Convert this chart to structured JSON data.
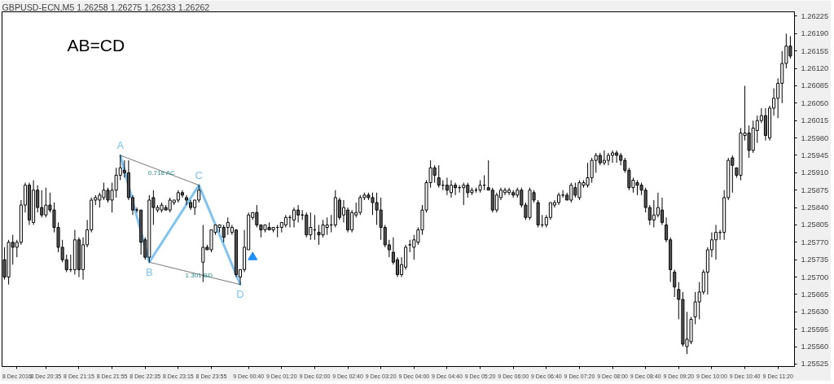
{
  "chart_data": {
    "type": "candlestick",
    "title": "GBPUSD-ECN,M5  1.26258 1.26275 1.26233 1.26262",
    "x": [
      "2016-12-08T19:45",
      "2016-12-08T19:50",
      "2016-12-08T19:55",
      "2016-12-08T20:00",
      "2016-12-08T20:05",
      "2016-12-08T20:10",
      "2016-12-08T20:15",
      "2016-12-08T20:20",
      "2016-12-08T20:25",
      "2016-12-08T20:30",
      "2016-12-08T20:35",
      "2016-12-08T20:40",
      "2016-12-08T20:45",
      "2016-12-08T20:50",
      "2016-12-08T20:55",
      "2016-12-08T21:00",
      "2016-12-08T21:05",
      "2016-12-08T21:10",
      "2016-12-08T21:15",
      "2016-12-08T21:20",
      "2016-12-08T21:25",
      "2016-12-08T21:30",
      "2016-12-08T21:35",
      "2016-12-08T21:40",
      "2016-12-08T21:45",
      "2016-12-08T21:50",
      "2016-12-08T21:55",
      "2016-12-08T22:00",
      "2016-12-08T22:05",
      "2016-12-08T22:10",
      "2016-12-08T22:15",
      "2016-12-08T22:20",
      "2016-12-08T22:25",
      "2016-12-08T22:30",
      "2016-12-08T22:35",
      "2016-12-08T22:40",
      "2016-12-08T22:45",
      "2016-12-08T22:50",
      "2016-12-08T22:55",
      "2016-12-08T23:00",
      "2016-12-08T23:05",
      "2016-12-08T23:10",
      "2016-12-08T23:15",
      "2016-12-08T23:20",
      "2016-12-08T23:25",
      "2016-12-08T23:30",
      "2016-12-08T23:35",
      "2016-12-08T23:40",
      "2016-12-08T23:45",
      "2016-12-08T23:50",
      "2016-12-08T23:55",
      "2016-12-09T00:00",
      "2016-12-09T00:05",
      "2016-12-09T00:10",
      "2016-12-09T00:15",
      "2016-12-09T00:20",
      "2016-12-09T00:25",
      "2016-12-09T00:30",
      "2016-12-09T00:35",
      "2016-12-09T00:40",
      "2016-12-09T00:45",
      "2016-12-09T00:50",
      "2016-12-09T00:55",
      "2016-12-09T01:00",
      "2016-12-09T01:05",
      "2016-12-09T01:10",
      "2016-12-09T01:15",
      "2016-12-09T01:20",
      "2016-12-09T01:25",
      "2016-12-09T01:30",
      "2016-12-09T01:35",
      "2016-12-09T01:40",
      "2016-12-09T01:45",
      "2016-12-09T01:50",
      "2016-12-09T01:55",
      "2016-12-09T02:00",
      "2016-12-09T02:05",
      "2016-12-09T02:10",
      "2016-12-09T02:15",
      "2016-12-09T02:20",
      "2016-12-09T02:25",
      "2016-12-09T02:30",
      "2016-12-09T02:35",
      "2016-12-09T02:40",
      "2016-12-09T02:45",
      "2016-12-09T02:50",
      "2016-12-09T02:55",
      "2016-12-09T03:00",
      "2016-12-09T03:05",
      "2016-12-09T03:10",
      "2016-12-09T03:15",
      "2016-12-09T03:20",
      "2016-12-09T03:25",
      "2016-12-09T03:30",
      "2016-12-09T03:35",
      "2016-12-09T03:40",
      "2016-12-09T03:45",
      "2016-12-09T03:50",
      "2016-12-09T03:55",
      "2016-12-09T04:00",
      "2016-12-09T04:05",
      "2016-12-09T04:10",
      "2016-12-09T04:15",
      "2016-12-09T04:20",
      "2016-12-09T04:25",
      "2016-12-09T04:30",
      "2016-12-09T04:35",
      "2016-12-09T04:40",
      "2016-12-09T04:45",
      "2016-12-09T04:50",
      "2016-12-09T04:55",
      "2016-12-09T05:00",
      "2016-12-09T05:05",
      "2016-12-09T05:10",
      "2016-12-09T05:15",
      "2016-12-09T05:20",
      "2016-12-09T05:25",
      "2016-12-09T05:30",
      "2016-12-09T05:35",
      "2016-12-09T05:40",
      "2016-12-09T05:45",
      "2016-12-09T05:50",
      "2016-12-09T05:55",
      "2016-12-09T06:00",
      "2016-12-09T06:05",
      "2016-12-09T06:10",
      "2016-12-09T06:15",
      "2016-12-09T06:20",
      "2016-12-09T06:25",
      "2016-12-09T06:30",
      "2016-12-09T06:35",
      "2016-12-09T06:40",
      "2016-12-09T06:45",
      "2016-12-09T06:50",
      "2016-12-09T06:55",
      "2016-12-09T07:00",
      "2016-12-09T07:05",
      "2016-12-09T07:10",
      "2016-12-09T07:15",
      "2016-12-09T07:20",
      "2016-12-09T07:25",
      "2016-12-09T07:30",
      "2016-12-09T07:35",
      "2016-12-09T07:40",
      "2016-12-09T07:45",
      "2016-12-09T07:50",
      "2016-12-09T07:55",
      "2016-12-09T08:00",
      "2016-12-09T08:05",
      "2016-12-09T08:10",
      "2016-12-09T08:15",
      "2016-12-09T08:20",
      "2016-12-09T08:25",
      "2016-12-09T08:30",
      "2016-12-09T08:35",
      "2016-12-09T08:40",
      "2016-12-09T08:45",
      "2016-12-09T08:50",
      "2016-12-09T08:55",
      "2016-12-09T09:00",
      "2016-12-09T09:05",
      "2016-12-09T09:10",
      "2016-12-09T09:15",
      "2016-12-09T09:20",
      "2016-12-09T09:25",
      "2016-12-09T09:30",
      "2016-12-09T09:35",
      "2016-12-09T09:40",
      "2016-12-09T09:45",
      "2016-12-09T09:50",
      "2016-12-09T09:55",
      "2016-12-09T10:00",
      "2016-12-09T10:05",
      "2016-12-09T10:10",
      "2016-12-09T10:15",
      "2016-12-09T10:20",
      "2016-12-09T10:25",
      "2016-12-09T10:30",
      "2016-12-09T10:35",
      "2016-12-09T10:40",
      "2016-12-09T10:45",
      "2016-12-09T10:50",
      "2016-12-09T10:55",
      "2016-12-09T11:00",
      "2016-12-09T11:05",
      "2016-12-09T11:10",
      "2016-12-09T11:15",
      "2016-12-09T11:20",
      "2016-12-09T11:25",
      "2016-12-09T11:30",
      "2016-12-09T11:35"
    ],
    "ohlc": [
      [
        1.25735,
        1.2576,
        1.25695,
        1.257
      ],
      [
        1.257,
        1.25775,
        1.25685,
        1.2577
      ],
      [
        1.2577,
        1.25785,
        1.25725,
        1.2576
      ],
      [
        1.2576,
        1.25775,
        1.2574,
        1.2577
      ],
      [
        1.2577,
        1.25855,
        1.25765,
        1.25845
      ],
      [
        1.25845,
        1.2589,
        1.2583,
        1.25885
      ],
      [
        1.25885,
        1.2589,
        1.25805,
        1.25815
      ],
      [
        1.2581,
        1.25895,
        1.25805,
        1.25875
      ],
      [
        1.25875,
        1.25885,
        1.2583,
        1.2584
      ],
      [
        1.2584,
        1.25875,
        1.2582,
        1.25825
      ],
      [
        1.25825,
        1.2588,
        1.2582,
        1.25845
      ],
      [
        1.25845,
        1.2587,
        1.2583,
        1.25835
      ],
      [
        1.25835,
        1.2585,
        1.2579,
        1.258
      ],
      [
        1.258,
        1.2581,
        1.2575,
        1.2576
      ],
      [
        1.2576,
        1.25775,
        1.2573,
        1.25735
      ],
      [
        1.25735,
        1.25745,
        1.2571,
        1.25715
      ],
      [
        1.25715,
        1.25745,
        1.2571,
        1.25715
      ],
      [
        1.25715,
        1.25795,
        1.25705,
        1.25775
      ],
      [
        1.25775,
        1.2578,
        1.257,
        1.25715
      ],
      [
        1.25715,
        1.2578,
        1.25695,
        1.25765
      ],
      [
        1.25765,
        1.25815,
        1.2576,
        1.25795
      ],
      [
        1.25795,
        1.2586,
        1.2579,
        1.25855
      ],
      [
        1.25855,
        1.25865,
        1.25845,
        1.2586
      ],
      [
        1.25855,
        1.2587,
        1.2584,
        1.25865
      ],
      [
        1.2586,
        1.2589,
        1.25855,
        1.25875
      ],
      [
        1.25875,
        1.2588,
        1.2585,
        1.25855
      ],
      [
        1.25855,
        1.2589,
        1.2583,
        1.25875
      ],
      [
        1.25875,
        1.2592,
        1.2586,
        1.25905
      ],
      [
        1.25905,
        1.25945,
        1.25895,
        1.2592
      ],
      [
        1.25915,
        1.25935,
        1.259,
        1.2591
      ],
      [
        1.2591,
        1.25935,
        1.25855,
        1.2586
      ],
      [
        1.2586,
        1.25865,
        1.25825,
        1.25835
      ],
      [
        1.25835,
        1.2584,
        1.2583,
        1.25835
      ],
      [
        1.25835,
        1.25835,
        1.25745,
        1.2577
      ],
      [
        1.25775,
        1.2578,
        1.25735,
        1.2574
      ],
      [
        1.2574,
        1.25865,
        1.2573,
        1.25855
      ],
      [
        1.2586,
        1.25875,
        1.25805,
        1.2584
      ],
      [
        1.25835,
        1.25845,
        1.2583,
        1.2584
      ],
      [
        1.25835,
        1.2585,
        1.2583,
        1.25845
      ],
      [
        1.2584,
        1.25845,
        1.25835,
        1.25835
      ],
      [
        1.25835,
        1.2586,
        1.2583,
        1.25855
      ],
      [
        1.2585,
        1.25855,
        1.25845,
        1.25855
      ],
      [
        1.25855,
        1.25875,
        1.2585,
        1.2587
      ],
      [
        1.2587,
        1.25875,
        1.2586,
        1.25865
      ],
      [
        1.2586,
        1.25865,
        1.25845,
        1.25855
      ],
      [
        1.2585,
        1.25855,
        1.25835,
        1.2584
      ],
      [
        1.2584,
        1.25855,
        1.25825,
        1.25855
      ],
      [
        1.25855,
        1.25885,
        1.2585,
        1.25875
      ],
      [
        1.2573,
        1.25805,
        1.2569,
        1.2576
      ],
      [
        1.2576,
        1.25765,
        1.25755,
        1.25755
      ],
      [
        1.25755,
        1.25795,
        1.2575,
        1.25795
      ],
      [
        1.2579,
        1.25805,
        1.25785,
        1.25805
      ],
      [
        1.258,
        1.25805,
        1.2579,
        1.25805
      ],
      [
        1.258,
        1.25805,
        1.2577,
        1.2578
      ],
      [
        1.258,
        1.2582,
        1.25785,
        1.2581
      ],
      [
        1.2579,
        1.25805,
        1.25785,
        1.258
      ],
      [
        1.25795,
        1.25795,
        1.257,
        1.25705
      ],
      [
        1.257,
        1.25715,
        1.25685,
        1.25715
      ],
      [
        1.25715,
        1.25795,
        1.2571,
        1.2576
      ],
      [
        1.25755,
        1.2583,
        1.25755,
        1.25825
      ],
      [
        1.2582,
        1.2583,
        1.25815,
        1.2583
      ],
      [
        1.2583,
        1.25845,
        1.258,
        1.25805
      ],
      [
        1.25805,
        1.25805,
        1.2578,
        1.25795
      ],
      [
        1.25795,
        1.25805,
        1.2579,
        1.25805
      ],
      [
        1.258,
        1.2581,
        1.25795,
        1.25795
      ],
      [
        1.25795,
        1.258,
        1.2579,
        1.258
      ],
      [
        1.258,
        1.25805,
        1.2578,
        1.258
      ],
      [
        1.258,
        1.2581,
        1.2579,
        1.2581
      ],
      [
        1.25805,
        1.25825,
        1.258,
        1.2582
      ],
      [
        1.2582,
        1.25825,
        1.258,
        1.2582
      ],
      [
        1.25815,
        1.2584,
        1.258,
        1.25835
      ],
      [
        1.25835,
        1.25845,
        1.2581,
        1.25825
      ],
      [
        1.25825,
        1.25835,
        1.25815,
        1.25825
      ],
      [
        1.25825,
        1.2583,
        1.2578,
        1.25785
      ],
      [
        1.25785,
        1.2583,
        1.25775,
        1.258
      ],
      [
        1.25795,
        1.25825,
        1.25775,
        1.25795
      ],
      [
        1.2579,
        1.25805,
        1.25765,
        1.25785
      ],
      [
        1.25785,
        1.25815,
        1.2578,
        1.25805
      ],
      [
        1.258,
        1.2582,
        1.25785,
        1.25805
      ],
      [
        1.25805,
        1.25825,
        1.2579,
        1.25805
      ],
      [
        1.25805,
        1.25875,
        1.258,
        1.2586
      ],
      [
        1.25855,
        1.2586,
        1.25815,
        1.2582
      ],
      [
        1.25825,
        1.25855,
        1.2581,
        1.2584
      ],
      [
        1.25835,
        1.2584,
        1.2579,
        1.25795
      ],
      [
        1.25795,
        1.25835,
        1.2579,
        1.2583
      ],
      [
        1.25825,
        1.2585,
        1.2582,
        1.2583
      ],
      [
        1.2583,
        1.25865,
        1.25825,
        1.2586
      ],
      [
        1.2586,
        1.2587,
        1.25855,
        1.25865
      ],
      [
        1.25865,
        1.2587,
        1.25855,
        1.2586
      ],
      [
        1.2586,
        1.2587,
        1.25825,
        1.2585
      ],
      [
        1.2585,
        1.2587,
        1.25805,
        1.25835
      ],
      [
        1.25835,
        1.2586,
        1.25775,
        1.258
      ],
      [
        1.258,
        1.25805,
        1.2576,
        1.25765
      ],
      [
        1.25765,
        1.25775,
        1.2574,
        1.25755
      ],
      [
        1.2575,
        1.2578,
        1.25725,
        1.2573
      ],
      [
        1.25735,
        1.2574,
        1.257,
        1.25705
      ],
      [
        1.25705,
        1.2574,
        1.257,
        1.25725
      ],
      [
        1.2572,
        1.25765,
        1.25715,
        1.2576
      ],
      [
        1.25765,
        1.25775,
        1.2575,
        1.25765
      ],
      [
        1.2576,
        1.25785,
        1.25735,
        1.25775
      ],
      [
        1.2577,
        1.258,
        1.25765,
        1.25795
      ],
      [
        1.25795,
        1.25845,
        1.25785,
        1.25835
      ],
      [
        1.25835,
        1.25895,
        1.2583,
        1.2589
      ],
      [
        1.2589,
        1.25935,
        1.2588,
        1.2592
      ],
      [
        1.2592,
        1.25925,
        1.2589,
        1.25905
      ],
      [
        1.259,
        1.25925,
        1.2588,
        1.25885
      ],
      [
        1.25885,
        1.25895,
        1.25875,
        1.25885
      ],
      [
        1.25885,
        1.259,
        1.25865,
        1.25875
      ],
      [
        1.2587,
        1.25895,
        1.2586,
        1.25885
      ],
      [
        1.25885,
        1.2589,
        1.25865,
        1.2588
      ],
      [
        1.2588,
        1.25885,
        1.2587,
        1.2588
      ],
      [
        1.2588,
        1.2589,
        1.25845,
        1.25885
      ],
      [
        1.25885,
        1.2589,
        1.2586,
        1.2587
      ],
      [
        1.2587,
        1.2588,
        1.25865,
        1.25875
      ],
      [
        1.25875,
        1.2588,
        1.2587,
        1.25875
      ],
      [
        1.25875,
        1.25895,
        1.2587,
        1.25885
      ],
      [
        1.25885,
        1.25905,
        1.25875,
        1.25885
      ],
      [
        1.2588,
        1.25935,
        1.25875,
        1.25875
      ],
      [
        1.25875,
        1.2588,
        1.2583,
        1.25835
      ],
      [
        1.25835,
        1.2587,
        1.2583,
        1.25865
      ],
      [
        1.2586,
        1.2588,
        1.25855,
        1.25875
      ],
      [
        1.2587,
        1.2588,
        1.25865,
        1.25875
      ],
      [
        1.2587,
        1.2588,
        1.25865,
        1.25875
      ],
      [
        1.2587,
        1.25875,
        1.2586,
        1.25865
      ],
      [
        1.25865,
        1.2588,
        1.2586,
        1.25875
      ],
      [
        1.25875,
        1.2588,
        1.2584,
        1.25845
      ],
      [
        1.25845,
        1.2585,
        1.25815,
        1.2582
      ],
      [
        1.2582,
        1.2588,
        1.25815,
        1.25875
      ],
      [
        1.2587,
        1.25875,
        1.2585,
        1.25855
      ],
      [
        1.2585,
        1.25855,
        1.258,
        1.25805
      ],
      [
        1.25805,
        1.25825,
        1.258,
        1.25805
      ],
      [
        1.25805,
        1.25825,
        1.258,
        1.2582
      ],
      [
        1.2582,
        1.2585,
        1.25815,
        1.2585
      ],
      [
        1.25845,
        1.25855,
        1.2584,
        1.2585
      ],
      [
        1.2585,
        1.2587,
        1.25845,
        1.25865
      ],
      [
        1.25865,
        1.25875,
        1.2586,
        1.25865
      ],
      [
        1.25865,
        1.2587,
        1.25855,
        1.25855
      ],
      [
        1.25855,
        1.2589,
        1.2585,
        1.25885
      ],
      [
        1.2588,
        1.2589,
        1.2586,
        1.25865
      ],
      [
        1.2586,
        1.25895,
        1.25855,
        1.2589
      ],
      [
        1.25885,
        1.25895,
        1.2588,
        1.2589
      ],
      [
        1.25885,
        1.2593,
        1.2588,
        1.259
      ],
      [
        1.259,
        1.2594,
        1.2589,
        1.25935
      ],
      [
        1.25935,
        1.2595,
        1.2591,
        1.25945
      ],
      [
        1.25945,
        1.2595,
        1.25925,
        1.2593
      ],
      [
        1.2593,
        1.25955,
        1.25925,
        1.25935
      ],
      [
        1.25935,
        1.2595,
        1.25925,
        1.25945
      ],
      [
        1.25945,
        1.25955,
        1.2593,
        1.2595
      ],
      [
        1.2595,
        1.25955,
        1.2593,
        1.25945
      ],
      [
        1.25945,
        1.2595,
        1.25925,
        1.25935
      ],
      [
        1.25935,
        1.2594,
        1.2591,
        1.25915
      ],
      [
        1.25915,
        1.2592,
        1.25875,
        1.2588
      ],
      [
        1.2588,
        1.259,
        1.2587,
        1.25895
      ],
      [
        1.2589,
        1.25895,
        1.25865,
        1.25885
      ],
      [
        1.25885,
        1.2589,
        1.25865,
        1.25875
      ],
      [
        1.25875,
        1.2588,
        1.2583,
        1.2584
      ],
      [
        1.2584,
        1.25845,
        1.25805,
        1.25815
      ],
      [
        1.25815,
        1.25855,
        1.258,
        1.25825
      ],
      [
        1.25825,
        1.2587,
        1.2582,
        1.2584
      ],
      [
        1.25835,
        1.2586,
        1.25805,
        1.2581
      ],
      [
        1.25805,
        1.2582,
        1.2577,
        1.25775
      ],
      [
        1.25775,
        1.2578,
        1.2569,
        1.25715
      ],
      [
        1.2571,
        1.25715,
        1.2566,
        1.2568
      ],
      [
        1.25675,
        1.2569,
        1.25615,
        1.25655
      ],
      [
        1.25655,
        1.2567,
        1.2556,
        1.25565
      ],
      [
        1.2556,
        1.2563,
        1.25545,
        1.25575
      ],
      [
        1.2557,
        1.2562,
        1.25565,
        1.25615
      ],
      [
        1.2562,
        1.2567,
        1.25605,
        1.2565
      ],
      [
        1.2565,
        1.2569,
        1.25615,
        1.2567
      ],
      [
        1.2567,
        1.25715,
        1.25665,
        1.2571
      ],
      [
        1.2571,
        1.2576,
        1.25665,
        1.25755
      ],
      [
        1.25755,
        1.2579,
        1.2574,
        1.25775
      ],
      [
        1.25775,
        1.25805,
        1.25735,
        1.2579
      ],
      [
        1.2579,
        1.25795,
        1.25775,
        1.2579
      ],
      [
        1.2579,
        1.25875,
        1.25775,
        1.2586
      ],
      [
        1.2586,
        1.2594,
        1.25855,
        1.25935
      ],
      [
        1.2594,
        1.25945,
        1.2587,
        1.25925
      ],
      [
        1.2592,
        1.2592,
        1.259,
        1.25905
      ],
      [
        1.25905,
        1.26,
        1.25895,
        1.2599
      ],
      [
        1.25985,
        1.26085,
        1.25975,
        1.2599
      ],
      [
        1.2599,
        1.26005,
        1.2594,
        1.25955
      ],
      [
        1.25955,
        1.26015,
        1.2595,
        1.26
      ],
      [
        1.25995,
        1.26025,
        1.2597,
        1.26015
      ],
      [
        1.26015,
        1.2604,
        1.2601,
        1.26025
      ],
      [
        1.26025,
        1.2604,
        1.25975,
        1.25985
      ],
      [
        1.2598,
        1.26045,
        1.25975,
        1.2604
      ],
      [
        1.2604,
        1.2608,
        1.26025,
        1.2606
      ],
      [
        1.2606,
        1.261,
        1.2602,
        1.2609
      ],
      [
        1.2609,
        1.26155,
        1.2605,
        1.2613
      ],
      [
        1.2613,
        1.2619,
        1.2612,
        1.26165
      ],
      [
        1.26165,
        1.26185,
        1.2614,
        1.26145
      ]
    ],
    "xlim": [
      "2016-12-08T19:42",
      "2016-12-09T11:40"
    ],
    "xticks": [
      {
        "value": "2016-12-08T20:00",
        "label": "8 Dec 2016"
      },
      {
        "value": "2016-12-08T20:35",
        "label": "8 Dec 20:35"
      },
      {
        "value": "2016-12-08T21:15",
        "label": "8 Dec 21:15"
      },
      {
        "value": "2016-12-08T21:55",
        "label": "8 Dec 21:55"
      },
      {
        "value": "2016-12-08T22:35",
        "label": "8 Dec 22:35"
      },
      {
        "value": "2016-12-08T23:15",
        "label": "8 Dec 23:15"
      },
      {
        "value": "2016-12-08T23:55",
        "label": "8 Dec 23:55"
      },
      {
        "value": "2016-12-09T00:40",
        "label": "9 Dec 00:40"
      },
      {
        "value": "2016-12-09T01:20",
        "label": "9 Dec 01:20"
      },
      {
        "value": "2016-12-09T02:00",
        "label": "9 Dec 02:00"
      },
      {
        "value": "2016-12-09T02:40",
        "label": "9 Dec 02:40"
      },
      {
        "value": "2016-12-09T03:20",
        "label": "9 Dec 03:20"
      },
      {
        "value": "2016-12-09T04:00",
        "label": "9 Dec 04:00"
      },
      {
        "value": "2016-12-09T04:40",
        "label": "9 Dec 04:40"
      },
      {
        "value": "2016-12-09T05:20",
        "label": "9 Dec 05:20"
      },
      {
        "value": "2016-12-09T06:00",
        "label": "9 Dec 06:00"
      },
      {
        "value": "2016-12-09T06:40",
        "label": "9 Dec 06:40"
      },
      {
        "value": "2016-12-09T07:20",
        "label": "9 Dec 07:20"
      },
      {
        "value": "2016-12-09T08:00",
        "label": "9 Dec 08:00"
      },
      {
        "value": "2016-12-09T08:40",
        "label": "9 Dec 08:40"
      },
      {
        "value": "2016-12-09T09:20",
        "label": "9 Dec 09:20"
      },
      {
        "value": "2016-12-09T10:00",
        "label": "9 Dec 10:00"
      },
      {
        "value": "2016-12-09T10:40",
        "label": "9 Dec 10:40"
      },
      {
        "value": "2016-12-09T11:20",
        "label": "9 Dec 11:20"
      }
    ],
    "ylim": [
      1.2552,
      1.26234
    ],
    "yticks": [
      {
        "value": 1.25525,
        "label": "1.25525"
      },
      {
        "value": 1.2556,
        "label": "1.25560"
      },
      {
        "value": 1.25595,
        "label": "1.25595"
      },
      {
        "value": 1.2563,
        "label": "1.25630"
      },
      {
        "value": 1.25665,
        "label": "1.25665"
      },
      {
        "value": 1.257,
        "label": "1.25700"
      },
      {
        "value": 1.25735,
        "label": "1.25735"
      },
      {
        "value": 1.2577,
        "label": "1.25770"
      },
      {
        "value": 1.25805,
        "label": "1.25805"
      },
      {
        "value": 1.2584,
        "label": "1.25840"
      },
      {
        "value": 1.25875,
        "label": "1.25875"
      },
      {
        "value": 1.2591,
        "label": "1.25910"
      },
      {
        "value": 1.25945,
        "label": "1.25945"
      },
      {
        "value": 1.2598,
        "label": "1.25980"
      },
      {
        "value": 1.26015,
        "label": "1.26015"
      },
      {
        "value": 1.2605,
        "label": "1.26050"
      },
      {
        "value": 1.26085,
        "label": "1.26085"
      },
      {
        "value": 1.2612,
        "label": "1.26120"
      },
      {
        "value": 1.26155,
        "label": "1.26155"
      },
      {
        "value": 1.2619,
        "label": "1.26190"
      },
      {
        "value": 1.26225,
        "label": "1.26225"
      }
    ],
    "series": [
      {
        "type": "line",
        "color": "#7fc4f0",
        "line_style": "solid",
        "x": [
          "2016-12-08T22:05",
          "2016-12-08T22:40",
          "2016-12-08T23:40",
          "2016-12-09T00:30"
        ],
        "values": [
          1.25945,
          1.2573,
          1.25885,
          1.25685
        ]
      },
      {
        "type": "line",
        "color": "#606060",
        "line_style": "dotted",
        "x": [
          "2016-12-08T22:05",
          "2016-12-08T23:40"
        ],
        "values": [
          1.25945,
          1.25885
        ]
      },
      {
        "type": "line",
        "color": "#606060",
        "line_style": "dotted",
        "x": [
          "2016-12-08T22:40",
          "2016-12-09T00:30"
        ],
        "values": [
          1.2573,
          1.25685
        ]
      },
      {
        "type": "scatter",
        "color": "#1e90ff",
        "marker": "triangle",
        "x": [
          "2016-12-09T00:45"
        ],
        "values": [
          1.2574
        ]
      }
    ],
    "annotations": [
      "AB=CD",
      {
        "text": "A",
        "x": "2016-12-08T22:05",
        "y": 1.25945
      },
      {
        "text": "B",
        "x": "2016-12-08T22:40",
        "y": 1.2573
      },
      {
        "text": "C",
        "x": "2016-12-08T23:40",
        "y": 1.25885
      },
      {
        "text": "D",
        "x": "2016-12-09T00:30",
        "y": 1.25685
      },
      {
        "text": "0.718 AC",
        "x": "2016-12-08T22:55",
        "y": 1.25909
      },
      {
        "text": "1.301 BD",
        "x": "2016-12-08T23:40",
        "y": 1.25703
      }
    ]
  }
}
